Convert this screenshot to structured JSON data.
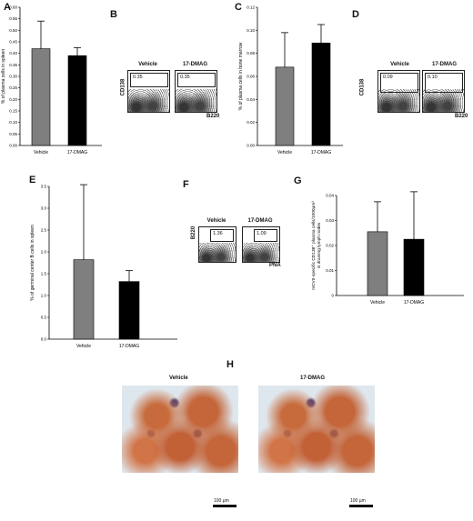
{
  "panels": {
    "A": {
      "letter": "A",
      "ylabel": "% of plasma cells in spleen",
      "yticks": [
        "0.00",
        "0.05",
        "0.10",
        "0.15",
        "0.20",
        "0.25",
        "0.30",
        "0.35",
        "0.40",
        "0.45",
        "0.50",
        "0.55",
        "0.60"
      ],
      "categories": [
        "Vehicle",
        "17-DMAG"
      ]
    },
    "B": {
      "letter": "B",
      "titles": [
        "Vehicle",
        "17-DMAG"
      ],
      "values": [
        "0.35",
        "0.35"
      ],
      "yaxis": "CD138",
      "xaxis": "B220"
    },
    "C": {
      "letter": "C",
      "ylabel": "% of plasma cells in bone marrow",
      "yticks": [
        "0.00",
        "0.02",
        "0.04",
        "0.06",
        "0.08",
        "0.10",
        "0.12"
      ],
      "categories": [
        "Vehicle",
        "17-DMAG"
      ]
    },
    "D": {
      "letter": "D",
      "titles": [
        "Vehicle",
        "17-DMAG"
      ],
      "values": [
        "0.09",
        "0.10"
      ],
      "yaxis": "CD138",
      "xaxis": "B220"
    },
    "E": {
      "letter": "E",
      "ylabel": "% of germinal center B cells in spleen",
      "yticks": [
        "0.0",
        "0.5",
        "1.0",
        "1.5",
        "2.0",
        "2.5",
        "3.0",
        "3.5"
      ],
      "categories": [
        "Vehicle",
        "17-DMAG"
      ]
    },
    "F": {
      "letter": "F",
      "titles": [
        "Vehicle",
        "17-DMAG"
      ],
      "values": [
        "1.36",
        "1.09"
      ],
      "yaxis": "B220",
      "xaxis": "PNA"
    },
    "G": {
      "letter": "G",
      "ylabel_line1": "mCVII-specific CD138⁺ plasma cells/1000µm²",
      "ylabel_line2": "in draining lymph nodes",
      "yticks": [
        "0",
        "0.01",
        "0.02",
        "0.03",
        "0.04"
      ],
      "categories": [
        "Vehicle",
        "17-DMAG"
      ]
    },
    "H": {
      "letter": "H",
      "titles": [
        "Vehicle",
        "17-DMAG"
      ],
      "scale": "100 µm"
    }
  },
  "colors": {
    "vehicle": "#7f7f7f",
    "dmag": "#000000"
  },
  "chart_data": [
    {
      "panel": "A",
      "type": "bar",
      "categories": [
        "Vehicle",
        "17-DMAG"
      ],
      "values": [
        0.42,
        0.39
      ],
      "errors": [
        0.12,
        0.035
      ],
      "ylabel": "% of plasma cells in spleen",
      "ylim": [
        0,
        0.6
      ]
    },
    {
      "panel": "C",
      "type": "bar",
      "categories": [
        "Vehicle",
        "17-DMAG"
      ],
      "values": [
        0.068,
        0.089
      ],
      "errors": [
        0.03,
        0.016
      ],
      "ylabel": "% of plasma cells in bone marrow",
      "ylim": [
        0,
        0.12
      ]
    },
    {
      "panel": "E",
      "type": "bar",
      "categories": [
        "Vehicle",
        "17-DMAG"
      ],
      "values": [
        1.82,
        1.32
      ],
      "errors": [
        1.72,
        0.25
      ],
      "ylabel": "% of germinal center B cells in spleen",
      "ylim": [
        0,
        3.5
      ]
    },
    {
      "panel": "G",
      "type": "bar",
      "categories": [
        "Vehicle",
        "17-DMAG"
      ],
      "values": [
        0.0255,
        0.0225
      ],
      "errors": [
        0.012,
        0.019
      ],
      "ylabel": "mCVII-specific CD138⁺ plasma cells/1000µm² in draining lymph nodes",
      "ylim": [
        0,
        0.04
      ]
    }
  ]
}
